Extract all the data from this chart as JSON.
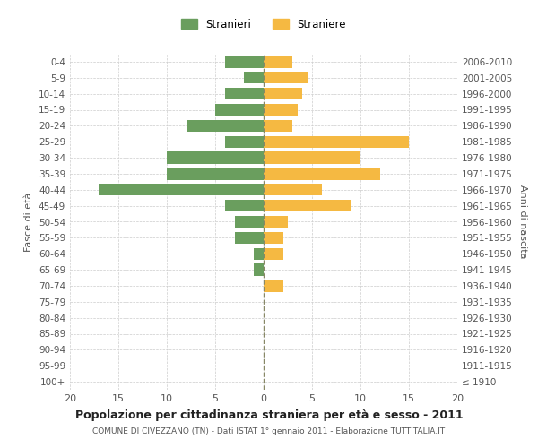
{
  "age_groups": [
    "100+",
    "95-99",
    "90-94",
    "85-89",
    "80-84",
    "75-79",
    "70-74",
    "65-69",
    "60-64",
    "55-59",
    "50-54",
    "45-49",
    "40-44",
    "35-39",
    "30-34",
    "25-29",
    "20-24",
    "15-19",
    "10-14",
    "5-9",
    "0-4"
  ],
  "birth_years": [
    "≤ 1910",
    "1911-1915",
    "1916-1920",
    "1921-1925",
    "1926-1930",
    "1931-1935",
    "1936-1940",
    "1941-1945",
    "1946-1950",
    "1951-1955",
    "1956-1960",
    "1961-1965",
    "1966-1970",
    "1971-1975",
    "1976-1980",
    "1981-1985",
    "1986-1990",
    "1991-1995",
    "1996-2000",
    "2001-2005",
    "2006-2010"
  ],
  "males": [
    0,
    0,
    0,
    0,
    0,
    0,
    0,
    1,
    1,
    3,
    3,
    4,
    17,
    10,
    10,
    4,
    8,
    5,
    4,
    2,
    4
  ],
  "females": [
    0,
    0,
    0,
    0,
    0,
    0,
    2,
    0,
    2,
    2,
    2.5,
    9,
    6,
    12,
    10,
    15,
    3,
    3.5,
    4,
    4.5,
    3
  ],
  "male_color": "#6a9e5e",
  "female_color": "#f5b942",
  "title": "Popolazione per cittadinanza straniera per età e sesso - 2011",
  "subtitle": "COMUNE DI CIVEZZANO (TN) - Dati ISTAT 1° gennaio 2011 - Elaborazione TUTTITALIA.IT",
  "ylabel_left": "Fasce di età",
  "ylabel_right": "Anni di nascita",
  "legend_male": "Stranieri",
  "legend_female": "Straniere",
  "xlim": 20,
  "background_color": "#ffffff",
  "grid_color": "#cccccc"
}
